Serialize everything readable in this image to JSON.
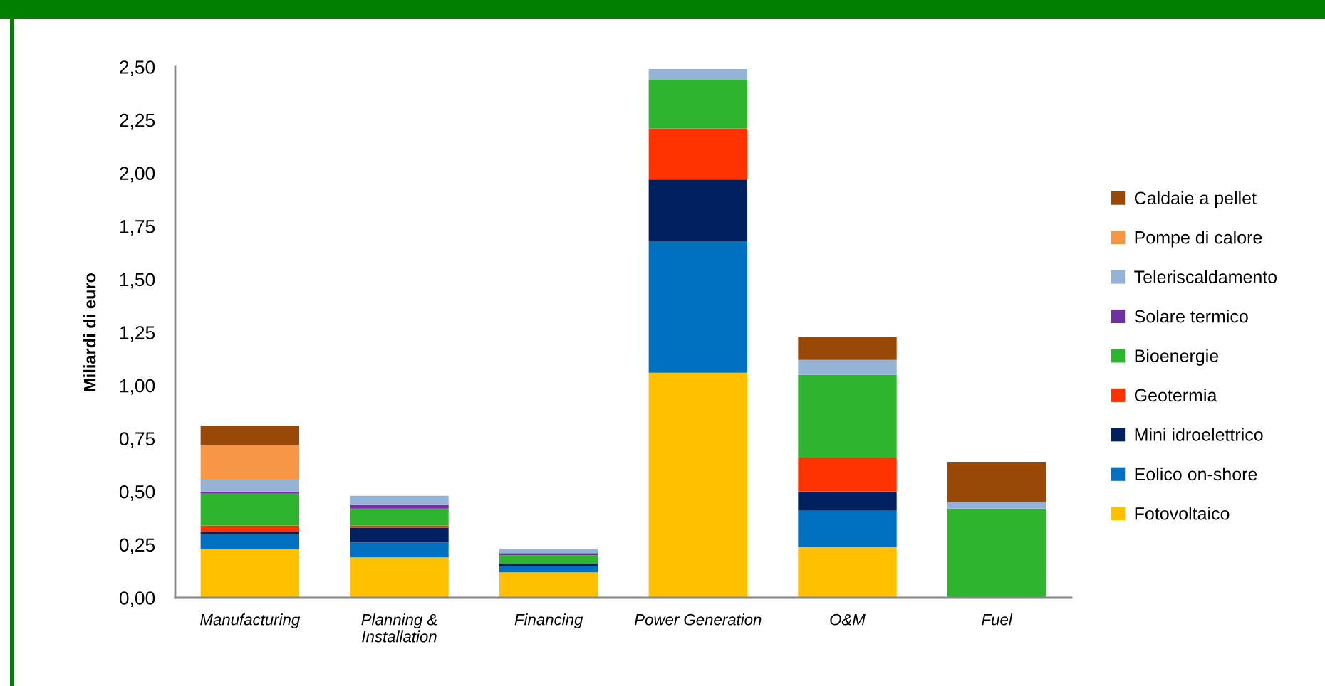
{
  "chart_data": {
    "type": "bar",
    "stacked": true,
    "ylabel": "Miliardi di euro",
    "categories": [
      "Manufacturing",
      "Planning &\nInstallation",
      "Financing",
      "Power Generation",
      "O&M",
      "Fuel"
    ],
    "series": [
      {
        "name": "Fotovoltaico",
        "color": "#ffc000",
        "values": [
          0.23,
          0.19,
          0.12,
          1.06,
          0.24,
          null
        ]
      },
      {
        "name": "Eolico on-shore",
        "color": "#0070c0",
        "values": [
          0.07,
          0.07,
          0.03,
          0.62,
          0.17,
          null
        ]
      },
      {
        "name": "Mini idroelettrico",
        "color": "#002060",
        "values": [
          0.01,
          0.07,
          0.01,
          0.29,
          0.09,
          null
        ]
      },
      {
        "name": "Geotermia",
        "color": "#ff3300",
        "values": [
          0.03,
          0.01,
          null,
          0.24,
          0.16,
          null
        ]
      },
      {
        "name": "Bioenergie",
        "color": "#2eb42e",
        "values": [
          0.15,
          0.08,
          0.04,
          0.23,
          0.39,
          0.42
        ]
      },
      {
        "name": "Solare termico",
        "color": "#7030a0",
        "values": [
          0.01,
          0.02,
          0.01,
          null,
          null,
          null
        ]
      },
      {
        "name": "Teleriscaldamento",
        "color": "#95b3d7",
        "values": [
          0.06,
          0.04,
          0.02,
          0.05,
          0.07,
          0.03
        ]
      },
      {
        "name": "Pompe di calore",
        "color": "#f79646",
        "values": [
          0.16,
          null,
          null,
          null,
          null,
          null
        ]
      },
      {
        "name": "Caldaie a pellet",
        "color": "#984807",
        "values": [
          0.09,
          null,
          null,
          null,
          0.11,
          0.19
        ]
      }
    ],
    "ylim": [
      0,
      2.5
    ],
    "yticks": [
      {
        "value": 0,
        "label": "0,00"
      },
      {
        "value": 0.25,
        "label": "0,25"
      },
      {
        "value": 0.5,
        "label": "0,50"
      },
      {
        "value": 0.75,
        "label": "0,75"
      },
      {
        "value": 1.0,
        "label": "1,00"
      },
      {
        "value": 1.25,
        "label": "1,25"
      },
      {
        "value": 1.5,
        "label": "1,50"
      },
      {
        "value": 1.75,
        "label": "1,75"
      },
      {
        "value": 2.0,
        "label": "2,00"
      },
      {
        "value": 2.25,
        "label": "2,25"
      },
      {
        "value": 2.5,
        "label": "2,50"
      }
    ],
    "grid": false,
    "legend": "right"
  }
}
